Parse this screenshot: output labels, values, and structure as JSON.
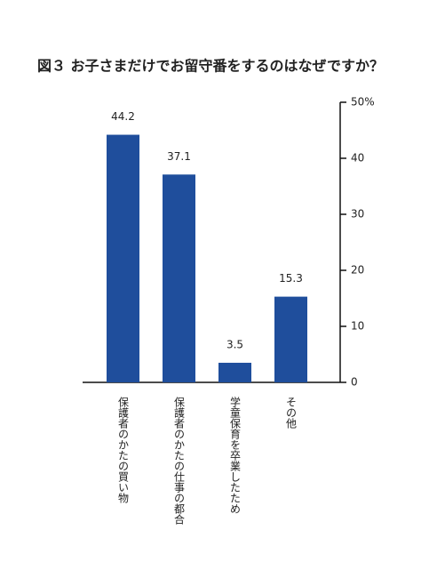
{
  "chart_data": {
    "type": "bar",
    "title": "図３ お子さまだけでお留守番をするのはなぜですか？",
    "categories": [
      "保護者のかたの買い物",
      "保護者のかたの仕事の都合",
      "学童保育を卒業したため",
      "その他"
    ],
    "values": [
      44.2,
      37.1,
      3.5,
      15.3
    ],
    "color": "#1f4e9c",
    "ylim": [
      0,
      50
    ],
    "yticks": [
      0,
      10,
      20,
      30,
      40,
      {
        "value": 50,
        "label": "50%"
      }
    ],
    "grid": false
  }
}
